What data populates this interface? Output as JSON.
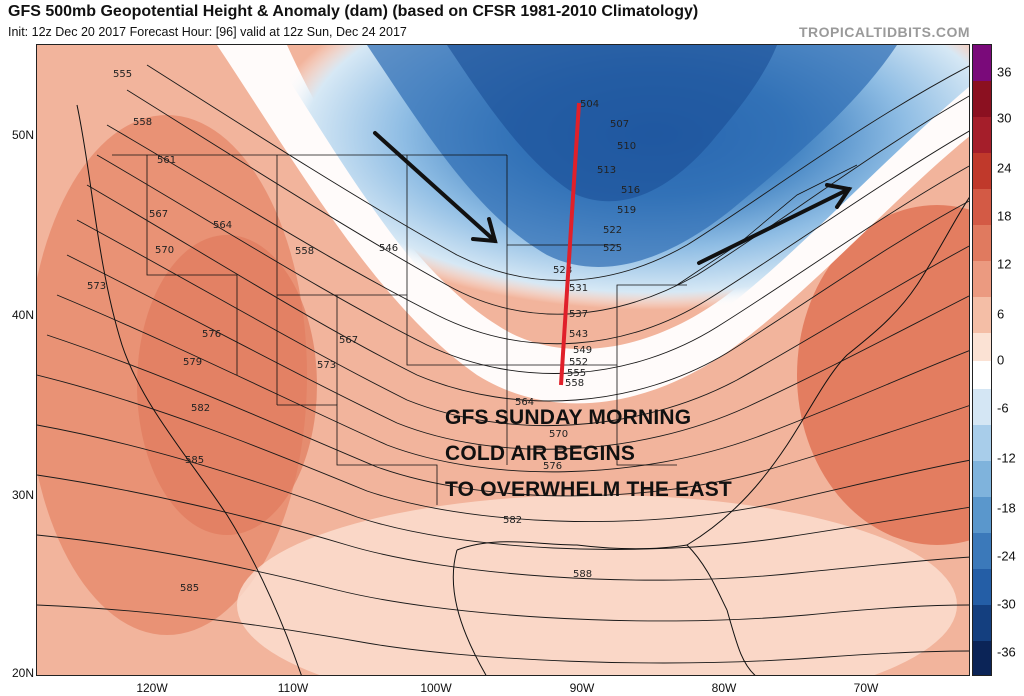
{
  "header": {
    "title": "GFS 500mb Geopotential Height & Anomaly (dam) (based on CFSR 1981-2010 Climatology)",
    "subtitle": "Init: 12z Dec 20 2017   Forecast Hour: [96]   valid at 12z Sun, Dec 24 2017",
    "brand": "TROPICALTIDBITS.COM"
  },
  "axes": {
    "lat_labels": [
      "50N",
      "40N",
      "30N",
      "20N"
    ],
    "lon_labels": [
      "120W",
      "110W",
      "100W",
      "90W",
      "80W",
      "70W"
    ]
  },
  "colorbar": {
    "labels": [
      "36",
      "30",
      "24",
      "18",
      "12",
      "6",
      "0",
      "-6",
      "-12",
      "-18",
      "-24",
      "-30",
      "-36"
    ],
    "colors": [
      "#7a0a7a",
      "#8b1020",
      "#a51e2a",
      "#c0392b",
      "#d35a45",
      "#e07a5f",
      "#eb9a80",
      "#f4bea6",
      "#fbe2d4",
      "#ffffff",
      "#d4e6f4",
      "#a8cdea",
      "#7fb3dc",
      "#5a97cc",
      "#3b79ba",
      "#245ea6",
      "#143f7f",
      "#0b2457"
    ]
  },
  "contour_labels": [
    "504",
    "507",
    "510",
    "513",
    "516",
    "519",
    "522",
    "525",
    "528",
    "531",
    "537",
    "543",
    "549",
    "552",
    "555",
    "558",
    "564",
    "570",
    "576",
    "582",
    "588",
    "585",
    "582",
    "579",
    "576",
    "573",
    "570",
    "567",
    "564",
    "561",
    "558",
    "555",
    "546",
    "558",
    "567",
    "573",
    "585"
  ],
  "annotation": {
    "line1": "GFS SUNDAY MORNING",
    "line2": "COLD AIR BEGINS",
    "line3": "TO OVERWHELM THE EAST",
    "trough_line_color": "#e0202a",
    "arrow_color": "#111111"
  }
}
